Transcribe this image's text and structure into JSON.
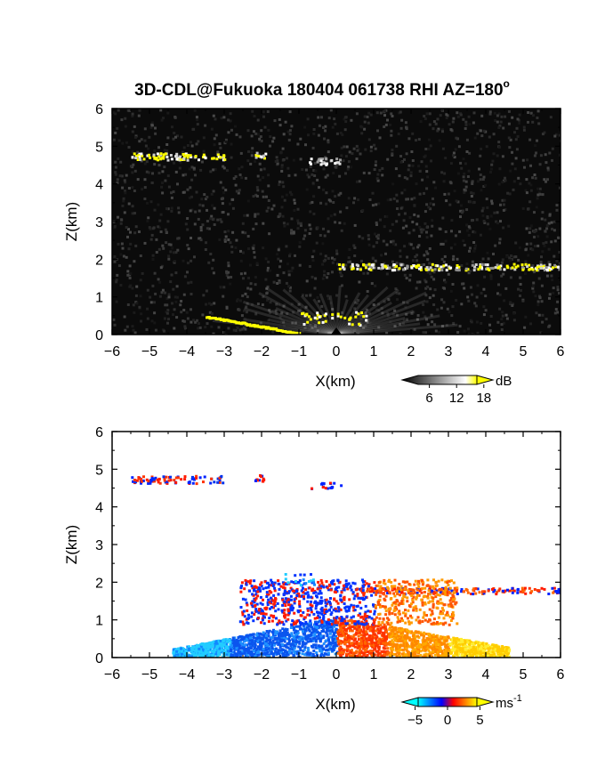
{
  "title": "3D-CDL@Fukuoka 180404 061738 RHI AZ=180",
  "title_superscript": "o",
  "chart_data": [
    {
      "id": "top",
      "type": "heatmap",
      "quantity": "backscatter intensity",
      "xlabel": "X(km)",
      "ylabel": "Z(km)",
      "xlim": [
        -6,
        6
      ],
      "ylim": [
        0,
        6
      ],
      "xticks": [
        "-6",
        "-5",
        "-4",
        "-3",
        "-2",
        "-1",
        "0",
        "1",
        "2",
        "3",
        "4",
        "5",
        "6"
      ],
      "yticks": [
        "0",
        "1",
        "2",
        "3",
        "4",
        "5",
        "6"
      ],
      "colorbar": {
        "unit": "dB",
        "ticks": [
          "6",
          "12",
          "18"
        ],
        "range": [
          0,
          20
        ],
        "colors": [
          "#000000",
          "#ffffff",
          "#ffff00"
        ]
      },
      "background_color": "#0b0b0b",
      "features": [
        {
          "name": "cloud layer ~4.7 km",
          "x": [
            -5.5,
            -1.9
          ],
          "z": 4.75
        },
        {
          "name": "cloud fragment ~4.6 km",
          "x": [
            -0.8,
            0.1
          ],
          "z": 4.65
        },
        {
          "name": "cloud layer ~1.8 km",
          "x": [
            0,
            6
          ],
          "z": 1.8
        },
        {
          "name": "boundary layer aerosol",
          "x": [
            -4.5,
            4.5
          ],
          "z_max": 1.3
        }
      ]
    },
    {
      "id": "bottom",
      "type": "heatmap",
      "quantity": "Doppler velocity",
      "xlabel": "X(km)",
      "ylabel": "Z(km)",
      "xlim": [
        -6,
        6
      ],
      "ylim": [
        0,
        6
      ],
      "xticks": [
        "-6",
        "-5",
        "-4",
        "-3",
        "-2",
        "-1",
        "0",
        "1",
        "2",
        "3",
        "4",
        "5",
        "6"
      ],
      "yticks": [
        "0",
        "1",
        "2",
        "3",
        "4",
        "5",
        "6"
      ],
      "colorbar": {
        "unit": "ms",
        "unit_superscript": "-1",
        "ticks": [
          "-5",
          "0",
          "5"
        ],
        "range": [
          -7,
          7
        ],
        "colors": [
          "#00ffff",
          "#0000ff",
          "#ff0000",
          "#ffff00"
        ]
      },
      "background_color": "#ffffff",
      "features": [
        {
          "name": "cloud layer ~4.7 km",
          "x": [
            -5.5,
            -1.9
          ],
          "z": 4.75,
          "velocity": "mixed"
        },
        {
          "name": "cloud layer ~1.8 km",
          "x": [
            0.5,
            6
          ],
          "z": 1.8,
          "velocity": "mixed"
        },
        {
          "name": "approaching flow",
          "x": [
            -4.5,
            0
          ],
          "z_max": 1.0,
          "velocity": -4
        },
        {
          "name": "receding flow",
          "x": [
            0,
            4.5
          ],
          "z_max": 1.0,
          "velocity": 4
        }
      ]
    }
  ]
}
